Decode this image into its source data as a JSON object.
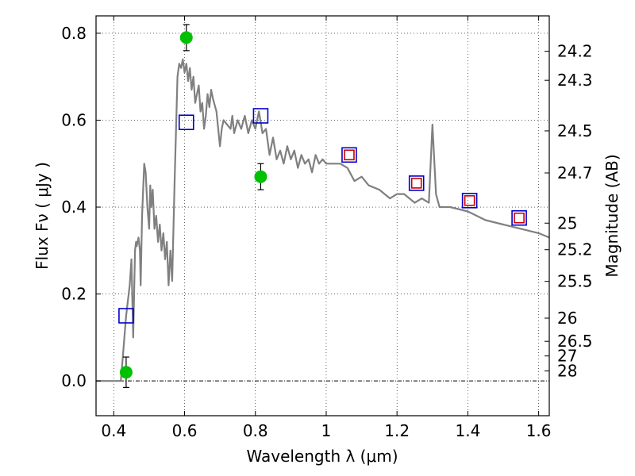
{
  "chart_data": {
    "type": "line",
    "title": "",
    "xlabel": "Wavelength  λ (μm)",
    "ylabel": "Flux  Fν  ( μJy )",
    "ylabel_right": "Magnitude (AB)",
    "xlim": [
      0.35,
      1.63
    ],
    "ylim": [
      -0.08,
      0.84
    ],
    "grid": true,
    "xticks": [
      0.4,
      0.6,
      0.8,
      1.0,
      1.2,
      1.4,
      1.6
    ],
    "xtick_labels": [
      "0.4",
      "0.6",
      "0.8",
      "1",
      "1.2",
      "1.4",
      "1.6"
    ],
    "yticks": [
      0.0,
      0.2,
      0.4,
      0.6,
      0.8
    ],
    "ytick_labels": [
      "0.0",
      "0.2",
      "0.4",
      "0.6",
      "0.8"
    ],
    "right_ticks": [
      {
        "label": "24.2",
        "flux": 0.7586
      },
      {
        "label": "24.3",
        "flux": 0.6918
      },
      {
        "label": "24.5",
        "flux": 0.5754
      },
      {
        "label": "24.7",
        "flux": 0.4786
      },
      {
        "label": "25",
        "flux": 0.3631
      },
      {
        "label": "25.2",
        "flux": 0.302
      },
      {
        "label": "25.5",
        "flux": 0.2291
      },
      {
        "label": "26",
        "flux": 0.1445
      },
      {
        "label": "26.5",
        "flux": 0.0912
      },
      {
        "label": "27",
        "flux": 0.0575
      },
      {
        "label": "28",
        "flux": 0.0229
      }
    ],
    "series": [
      {
        "name": "SED model",
        "kind": "line",
        "color": "#808080",
        "x": [
          0.35,
          0.42,
          0.425,
          0.435,
          0.445,
          0.45,
          0.455,
          0.46,
          0.463,
          0.465,
          0.47,
          0.474,
          0.476,
          0.48,
          0.486,
          0.49,
          0.495,
          0.5,
          0.503,
          0.506,
          0.51,
          0.515,
          0.52,
          0.525,
          0.53,
          0.535,
          0.54,
          0.545,
          0.55,
          0.555,
          0.56,
          0.565,
          0.572,
          0.58,
          0.585,
          0.59,
          0.595,
          0.6,
          0.605,
          0.61,
          0.615,
          0.62,
          0.625,
          0.63,
          0.635,
          0.64,
          0.645,
          0.65,
          0.655,
          0.66,
          0.665,
          0.67,
          0.675,
          0.68,
          0.69,
          0.7,
          0.705,
          0.71,
          0.72,
          0.73,
          0.735,
          0.74,
          0.75,
          0.76,
          0.77,
          0.78,
          0.79,
          0.8,
          0.81,
          0.82,
          0.83,
          0.84,
          0.85,
          0.86,
          0.87,
          0.88,
          0.89,
          0.9,
          0.91,
          0.92,
          0.93,
          0.94,
          0.95,
          0.96,
          0.97,
          0.98,
          0.99,
          1.0,
          1.02,
          1.04,
          1.06,
          1.08,
          1.1,
          1.12,
          1.15,
          1.18,
          1.2,
          1.22,
          1.25,
          1.27,
          1.29,
          1.3,
          1.31,
          1.32,
          1.35,
          1.4,
          1.45,
          1.5,
          1.55,
          1.6,
          1.63
        ],
        "y": [
          0.0,
          0.0,
          0.05,
          0.15,
          0.22,
          0.28,
          0.1,
          0.3,
          0.32,
          0.31,
          0.33,
          0.3,
          0.22,
          0.38,
          0.5,
          0.48,
          0.4,
          0.35,
          0.45,
          0.4,
          0.44,
          0.35,
          0.38,
          0.32,
          0.36,
          0.3,
          0.34,
          0.28,
          0.32,
          0.22,
          0.3,
          0.23,
          0.46,
          0.7,
          0.73,
          0.72,
          0.74,
          0.71,
          0.73,
          0.69,
          0.72,
          0.67,
          0.7,
          0.64,
          0.66,
          0.68,
          0.62,
          0.64,
          0.58,
          0.61,
          0.66,
          0.63,
          0.67,
          0.65,
          0.62,
          0.54,
          0.58,
          0.6,
          0.59,
          0.58,
          0.61,
          0.57,
          0.6,
          0.58,
          0.61,
          0.57,
          0.6,
          0.58,
          0.62,
          0.57,
          0.58,
          0.52,
          0.56,
          0.51,
          0.53,
          0.5,
          0.54,
          0.51,
          0.53,
          0.49,
          0.52,
          0.5,
          0.51,
          0.48,
          0.52,
          0.5,
          0.51,
          0.5,
          0.5,
          0.5,
          0.49,
          0.46,
          0.47,
          0.45,
          0.44,
          0.42,
          0.43,
          0.43,
          0.41,
          0.42,
          0.41,
          0.59,
          0.43,
          0.4,
          0.4,
          0.39,
          0.37,
          0.36,
          0.35,
          0.34,
          0.33
        ]
      },
      {
        "name": "Photometry (green)",
        "kind": "scatter",
        "color": "#00c000",
        "x": [
          0.435,
          0.605,
          0.815
        ],
        "y": [
          0.02,
          0.79,
          0.47
        ],
        "yerr": [
          0.035,
          0.03,
          0.03
        ]
      },
      {
        "name": "Model photometry (blue squares)",
        "kind": "square",
        "color": "#0000cc",
        "x": [
          0.435,
          0.605,
          0.815,
          1.065,
          1.255,
          1.405,
          1.545
        ],
        "y": [
          0.15,
          0.595,
          0.61,
          0.52,
          0.455,
          0.415,
          0.375
        ]
      },
      {
        "name": "Model photometry (red squares)",
        "kind": "square",
        "color": "#cc0000",
        "x": [
          1.065,
          1.255,
          1.405,
          1.545
        ],
        "y": [
          0.52,
          0.455,
          0.415,
          0.375
        ]
      }
    ]
  }
}
